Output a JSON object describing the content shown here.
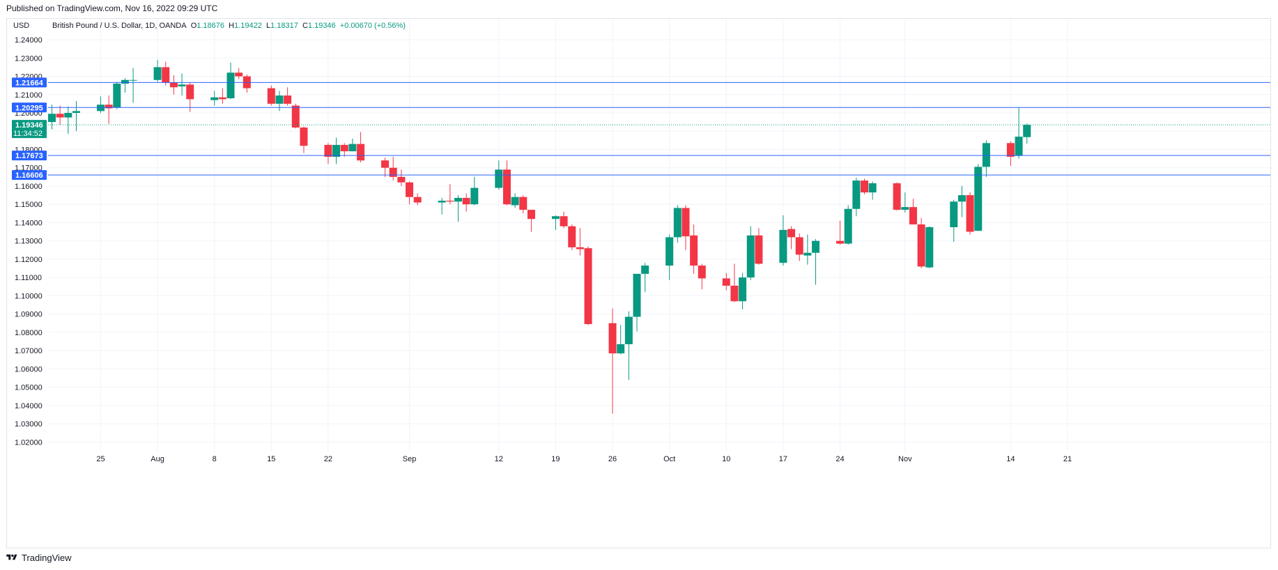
{
  "header": {
    "published": "Published on TradingView.com, Nov 16, 2022 09:29 UTC"
  },
  "footer": {
    "brand": "TradingView",
    "logo_icon": "tradingview-logo-icon"
  },
  "colors": {
    "up": "#089981",
    "down": "#f23645",
    "level_line": "#2962ff",
    "grid": "#f0f3fa",
    "text": "#131722"
  },
  "chart_data": {
    "type": "candlestick",
    "currency": "USD",
    "legend": {
      "symbol": "British Pound / U.S. Dollar, 1D, OANDA",
      "open_label": "O",
      "open": "1.18676",
      "high_label": "H",
      "high": "1.19422",
      "low_label": "L",
      "low": "1.18317",
      "close_label": "C",
      "close": "1.19346",
      "change": "+0.00670 (+0.56%)"
    },
    "ylim": [
      1.0148,
      1.2484
    ],
    "y_ticks": [
      "1.24000",
      "1.23000",
      "1.22000",
      "1.21000",
      "1.20000",
      "1.19000",
      "1.18000",
      "1.17000",
      "1.16000",
      "1.15000",
      "1.14000",
      "1.13000",
      "1.12000",
      "1.11000",
      "1.10000",
      "1.09000",
      "1.08000",
      "1.07000",
      "1.06000",
      "1.05000",
      "1.04000",
      "1.03000",
      "1.02000"
    ],
    "x_ticks": [
      {
        "label": "25",
        "date": "2022-07-25"
      },
      {
        "label": "Aug",
        "date": "2022-08-01"
      },
      {
        "label": "8",
        "date": "2022-08-08"
      },
      {
        "label": "15",
        "date": "2022-08-15"
      },
      {
        "label": "22",
        "date": "2022-08-22"
      },
      {
        "label": "Sep",
        "date": "2022-09-01"
      },
      {
        "label": "12",
        "date": "2022-09-12"
      },
      {
        "label": "19",
        "date": "2022-09-19"
      },
      {
        "label": "26",
        "date": "2022-09-26"
      },
      {
        "label": "Oct",
        "date": "2022-10-03"
      },
      {
        "label": "10",
        "date": "2022-10-10"
      },
      {
        "label": "17",
        "date": "2022-10-17"
      },
      {
        "label": "24",
        "date": "2022-10-24"
      },
      {
        "label": "Nov",
        "date": "2022-11-01"
      },
      {
        "label": "14",
        "date": "2022-11-14"
      },
      {
        "label": "21",
        "date": "2022-11-21"
      }
    ],
    "horizontal_levels": [
      {
        "value": 1.21664,
        "label": "1.21664"
      },
      {
        "value": 1.20295,
        "label": "1.20295"
      },
      {
        "value": 1.17673,
        "label": "1.17673"
      },
      {
        "value": 1.16606,
        "label": "1.16606"
      }
    ],
    "last_price": {
      "value": 1.19346,
      "label": "1.19346",
      "countdown": "11:34:52"
    },
    "candles": [
      {
        "date": "2022-07-19",
        "open": 1.195,
        "high": 1.2045,
        "low": 1.191,
        "close": 1.1995
      },
      {
        "date": "2022-07-20",
        "open": 1.1995,
        "high": 1.204,
        "low": 1.1935,
        "close": 1.1975
      },
      {
        "date": "2022-07-21",
        "open": 1.1975,
        "high": 1.2035,
        "low": 1.1885,
        "close": 1.2
      },
      {
        "date": "2022-07-22",
        "open": 1.2,
        "high": 1.2065,
        "low": 1.19,
        "close": 1.201
      },
      {
        "date": "2022-07-25",
        "open": 1.201,
        "high": 1.209,
        "low": 1.2,
        "close": 1.2045
      },
      {
        "date": "2022-07-26",
        "open": 1.2045,
        "high": 1.2095,
        "low": 1.194,
        "close": 1.2025
      },
      {
        "date": "2022-07-27",
        "open": 1.203,
        "high": 1.217,
        "low": 1.202,
        "close": 1.216
      },
      {
        "date": "2022-07-28",
        "open": 1.216,
        "high": 1.219,
        "low": 1.211,
        "close": 1.218
      },
      {
        "date": "2022-07-29",
        "open": 1.218,
        "high": 1.2245,
        "low": 1.2055,
        "close": 1.218
      },
      {
        "date": "2022-08-01",
        "open": 1.218,
        "high": 1.229,
        "low": 1.217,
        "close": 1.225
      },
      {
        "date": "2022-08-02",
        "open": 1.225,
        "high": 1.228,
        "low": 1.215,
        "close": 1.2165
      },
      {
        "date": "2022-08-03",
        "open": 1.2165,
        "high": 1.2205,
        "low": 1.21,
        "close": 1.214
      },
      {
        "date": "2022-08-04",
        "open": 1.2145,
        "high": 1.2215,
        "low": 1.2095,
        "close": 1.2155
      },
      {
        "date": "2022-08-05",
        "open": 1.2155,
        "high": 1.2165,
        "low": 1.2005,
        "close": 1.2075
      },
      {
        "date": "2022-08-08",
        "open": 1.207,
        "high": 1.212,
        "low": 1.204,
        "close": 1.2085
      },
      {
        "date": "2022-08-09",
        "open": 1.2085,
        "high": 1.2135,
        "low": 1.205,
        "close": 1.2075
      },
      {
        "date": "2022-08-10",
        "open": 1.208,
        "high": 1.2275,
        "low": 1.2075,
        "close": 1.222
      },
      {
        "date": "2022-08-11",
        "open": 1.222,
        "high": 1.2245,
        "low": 1.2185,
        "close": 1.22
      },
      {
        "date": "2022-08-12",
        "open": 1.22,
        "high": 1.221,
        "low": 1.211,
        "close": 1.2135
      },
      {
        "date": "2022-08-15",
        "open": 1.2135,
        "high": 1.215,
        "low": 1.204,
        "close": 1.205
      },
      {
        "date": "2022-08-16",
        "open": 1.205,
        "high": 1.212,
        "low": 1.201,
        "close": 1.2095
      },
      {
        "date": "2022-08-17",
        "open": 1.2095,
        "high": 1.214,
        "low": 1.204,
        "close": 1.205
      },
      {
        "date": "2022-08-18",
        "open": 1.204,
        "high": 1.205,
        "low": 1.1915,
        "close": 1.192
      },
      {
        "date": "2022-08-19",
        "open": 1.192,
        "high": 1.1925,
        "low": 1.178,
        "close": 1.182
      },
      {
        "date": "2022-08-22",
        "open": 1.1825,
        "high": 1.1835,
        "low": 1.172,
        "close": 1.176
      },
      {
        "date": "2022-08-23",
        "open": 1.176,
        "high": 1.1865,
        "low": 1.172,
        "close": 1.1825
      },
      {
        "date": "2022-08-24",
        "open": 1.1825,
        "high": 1.1835,
        "low": 1.176,
        "close": 1.179
      },
      {
        "date": "2022-08-25",
        "open": 1.179,
        "high": 1.186,
        "low": 1.179,
        "close": 1.183
      },
      {
        "date": "2022-08-26",
        "open": 1.183,
        "high": 1.1895,
        "low": 1.173,
        "close": 1.174
      },
      {
        "date": "2022-08-29",
        "open": 1.174,
        "high": 1.1755,
        "low": 1.165,
        "close": 1.17
      },
      {
        "date": "2022-08-30",
        "open": 1.17,
        "high": 1.176,
        "low": 1.163,
        "close": 1.165
      },
      {
        "date": "2022-08-31",
        "open": 1.165,
        "high": 1.169,
        "low": 1.16,
        "close": 1.162
      },
      {
        "date": "2022-09-01",
        "open": 1.162,
        "high": 1.1625,
        "low": 1.15,
        "close": 1.154
      },
      {
        "date": "2022-09-02",
        "open": 1.154,
        "high": 1.156,
        "low": 1.1495,
        "close": 1.151
      },
      {
        "date": "2022-09-05",
        "open": 1.151,
        "high": 1.1535,
        "low": 1.1445,
        "close": 1.152
      },
      {
        "date": "2022-09-06",
        "open": 1.152,
        "high": 1.161,
        "low": 1.15,
        "close": 1.1515
      },
      {
        "date": "2022-09-07",
        "open": 1.1515,
        "high": 1.155,
        "low": 1.1405,
        "close": 1.1535
      },
      {
        "date": "2022-09-08",
        "open": 1.1535,
        "high": 1.156,
        "low": 1.146,
        "close": 1.15
      },
      {
        "date": "2022-09-09",
        "open": 1.15,
        "high": 1.165,
        "low": 1.1495,
        "close": 1.159
      },
      {
        "date": "2022-09-12",
        "open": 1.159,
        "high": 1.174,
        "low": 1.158,
        "close": 1.169
      },
      {
        "date": "2022-09-13",
        "open": 1.169,
        "high": 1.174,
        "low": 1.1495,
        "close": 1.15
      },
      {
        "date": "2022-09-14",
        "open": 1.1495,
        "high": 1.156,
        "low": 1.148,
        "close": 1.154
      },
      {
        "date": "2022-09-15",
        "open": 1.154,
        "high": 1.155,
        "low": 1.145,
        "close": 1.147
      },
      {
        "date": "2022-09-16",
        "open": 1.147,
        "high": 1.147,
        "low": 1.135,
        "close": 1.142
      },
      {
        "date": "2022-09-19",
        "open": 1.142,
        "high": 1.144,
        "low": 1.136,
        "close": 1.1435
      },
      {
        "date": "2022-09-20",
        "open": 1.1435,
        "high": 1.146,
        "low": 1.137,
        "close": 1.138
      },
      {
        "date": "2022-09-21",
        "open": 1.138,
        "high": 1.139,
        "low": 1.125,
        "close": 1.1265
      },
      {
        "date": "2022-09-22",
        "open": 1.1265,
        "high": 1.137,
        "low": 1.122,
        "close": 1.1255
      },
      {
        "date": "2022-09-23",
        "open": 1.126,
        "high": 1.127,
        "low": 1.084,
        "close": 1.0845
      },
      {
        "date": "2022-09-26",
        "open": 1.085,
        "high": 1.093,
        "low": 1.0355,
        "close": 1.0685
      },
      {
        "date": "2022-09-27",
        "open": 1.0685,
        "high": 1.084,
        "low": 1.068,
        "close": 1.0735
      },
      {
        "date": "2022-09-28",
        "open": 1.0735,
        "high": 1.0915,
        "low": 1.054,
        "close": 1.0885
      },
      {
        "date": "2022-09-29",
        "open": 1.0885,
        "high": 1.111,
        "low": 1.0805,
        "close": 1.112
      },
      {
        "date": "2022-09-30",
        "open": 1.112,
        "high": 1.118,
        "low": 1.102,
        "close": 1.1165
      },
      {
        "date": "2022-10-03",
        "open": 1.1165,
        "high": 1.1335,
        "low": 1.1085,
        "close": 1.132
      },
      {
        "date": "2022-10-04",
        "open": 1.132,
        "high": 1.1495,
        "low": 1.129,
        "close": 1.148
      },
      {
        "date": "2022-10-05",
        "open": 1.148,
        "high": 1.1495,
        "low": 1.125,
        "close": 1.1325
      },
      {
        "date": "2022-10-06",
        "open": 1.133,
        "high": 1.139,
        "low": 1.112,
        "close": 1.1165
      },
      {
        "date": "2022-10-07",
        "open": 1.1165,
        "high": 1.1175,
        "low": 1.1035,
        "close": 1.1095
      },
      {
        "date": "2022-10-10",
        "open": 1.1095,
        "high": 1.1125,
        "low": 1.103,
        "close": 1.1055
      },
      {
        "date": "2022-10-11",
        "open": 1.1055,
        "high": 1.1175,
        "low": 1.0965,
        "close": 1.097
      },
      {
        "date": "2022-10-12",
        "open": 1.097,
        "high": 1.1125,
        "low": 1.0925,
        "close": 1.11
      },
      {
        "date": "2022-10-13",
        "open": 1.11,
        "high": 1.138,
        "low": 1.1085,
        "close": 1.133
      },
      {
        "date": "2022-10-14",
        "open": 1.133,
        "high": 1.137,
        "low": 1.117,
        "close": 1.1175
      },
      {
        "date": "2022-10-17",
        "open": 1.118,
        "high": 1.144,
        "low": 1.1165,
        "close": 1.136
      },
      {
        "date": "2022-10-18",
        "open": 1.1365,
        "high": 1.138,
        "low": 1.1255,
        "close": 1.132
      },
      {
        "date": "2022-10-19",
        "open": 1.132,
        "high": 1.134,
        "low": 1.119,
        "close": 1.1225
      },
      {
        "date": "2022-10-20",
        "open": 1.122,
        "high": 1.1335,
        "low": 1.117,
        "close": 1.1235
      },
      {
        "date": "2022-10-21",
        "open": 1.1235,
        "high": 1.131,
        "low": 1.106,
        "close": 1.13
      },
      {
        "date": "2022-10-24",
        "open": 1.13,
        "high": 1.141,
        "low": 1.128,
        "close": 1.1285
      },
      {
        "date": "2022-10-25",
        "open": 1.1285,
        "high": 1.1495,
        "low": 1.128,
        "close": 1.1475
      },
      {
        "date": "2022-10-26",
        "open": 1.1475,
        "high": 1.1645,
        "low": 1.1435,
        "close": 1.163
      },
      {
        "date": "2022-10-27",
        "open": 1.163,
        "high": 1.164,
        "low": 1.1555,
        "close": 1.1565
      },
      {
        "date": "2022-10-28",
        "open": 1.1565,
        "high": 1.1625,
        "low": 1.1525,
        "close": 1.1615
      },
      {
        "date": "2022-10-31",
        "open": 1.1615,
        "high": 1.162,
        "low": 1.1465,
        "close": 1.147
      },
      {
        "date": "2022-11-01",
        "open": 1.147,
        "high": 1.1565,
        "low": 1.1455,
        "close": 1.1485
      },
      {
        "date": "2022-11-02",
        "open": 1.1485,
        "high": 1.153,
        "low": 1.14,
        "close": 1.139
      },
      {
        "date": "2022-11-03",
        "open": 1.139,
        "high": 1.1425,
        "low": 1.115,
        "close": 1.116
      },
      {
        "date": "2022-11-04",
        "open": 1.1155,
        "high": 1.138,
        "low": 1.115,
        "close": 1.1375
      },
      {
        "date": "2022-11-07",
        "open": 1.1375,
        "high": 1.1525,
        "low": 1.1295,
        "close": 1.1515
      },
      {
        "date": "2022-11-08",
        "open": 1.1515,
        "high": 1.16,
        "low": 1.143,
        "close": 1.155
      },
      {
        "date": "2022-11-09",
        "open": 1.155,
        "high": 1.1565,
        "low": 1.1335,
        "close": 1.135
      },
      {
        "date": "2022-11-10",
        "open": 1.1355,
        "high": 1.172,
        "low": 1.1355,
        "close": 1.1705
      },
      {
        "date": "2022-11-11",
        "open": 1.1705,
        "high": 1.185,
        "low": 1.165,
        "close": 1.1835
      },
      {
        "date": "2022-11-14",
        "open": 1.1835,
        "high": 1.1845,
        "low": 1.171,
        "close": 1.176
      },
      {
        "date": "2022-11-15",
        "open": 1.1765,
        "high": 1.203,
        "low": 1.175,
        "close": 1.187
      },
      {
        "date": "2022-11-16",
        "open": 1.18676,
        "high": 1.19422,
        "low": 1.18317,
        "close": 1.19346
      }
    ]
  }
}
